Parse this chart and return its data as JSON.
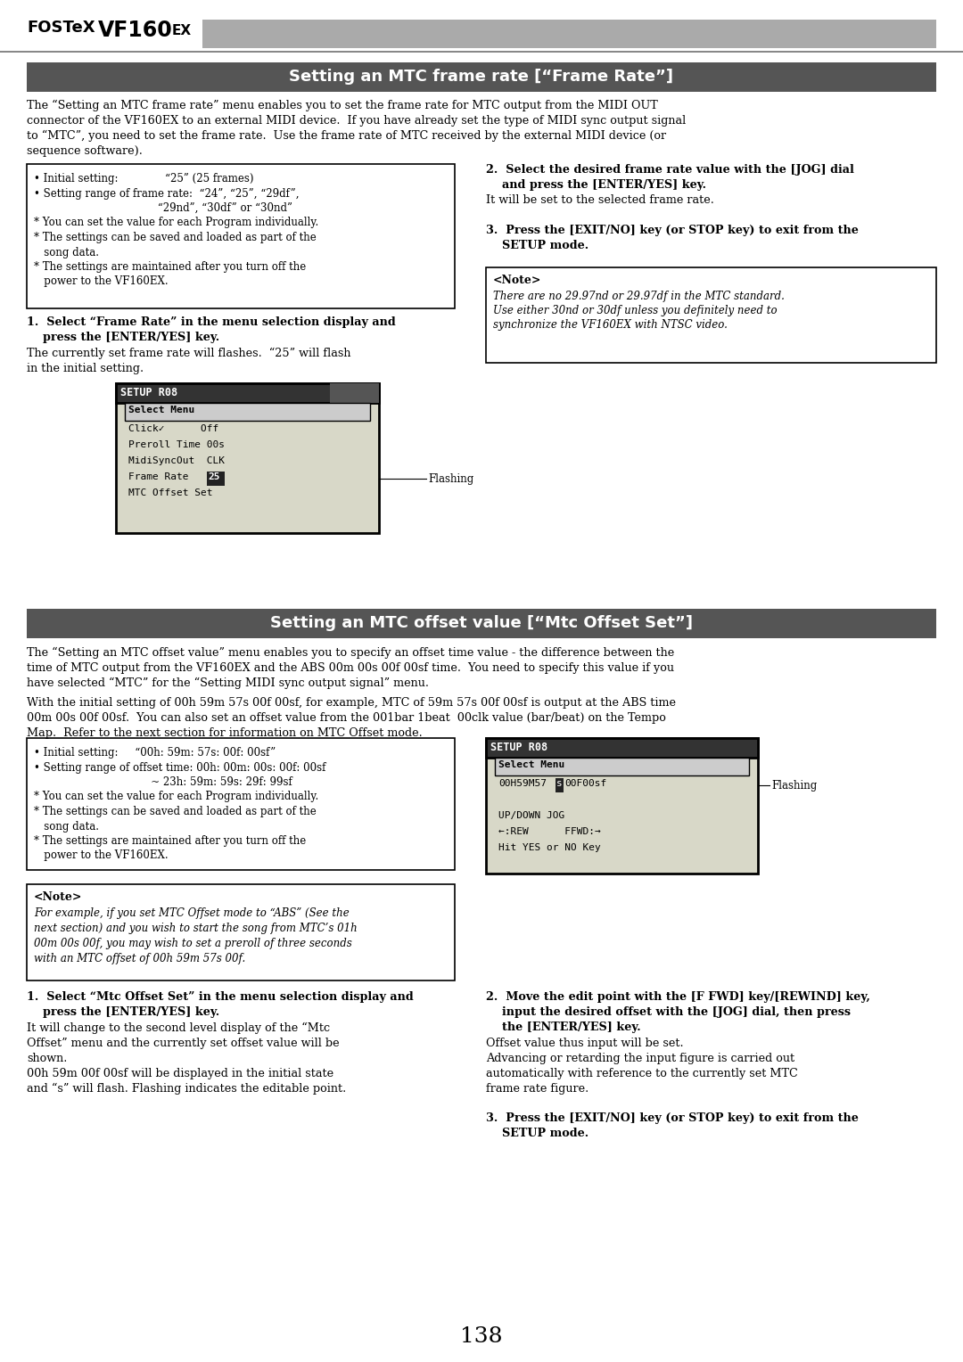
{
  "page_bg": "#ffffff",
  "section_bar_color": "#555555",
  "header_gray": "#999999",
  "page_number": "138",
  "section1_title": "Setting an MTC frame rate [“Frame Rate”]",
  "section2_title": "Setting an MTC offset value [“Mtc Offset Set”]"
}
